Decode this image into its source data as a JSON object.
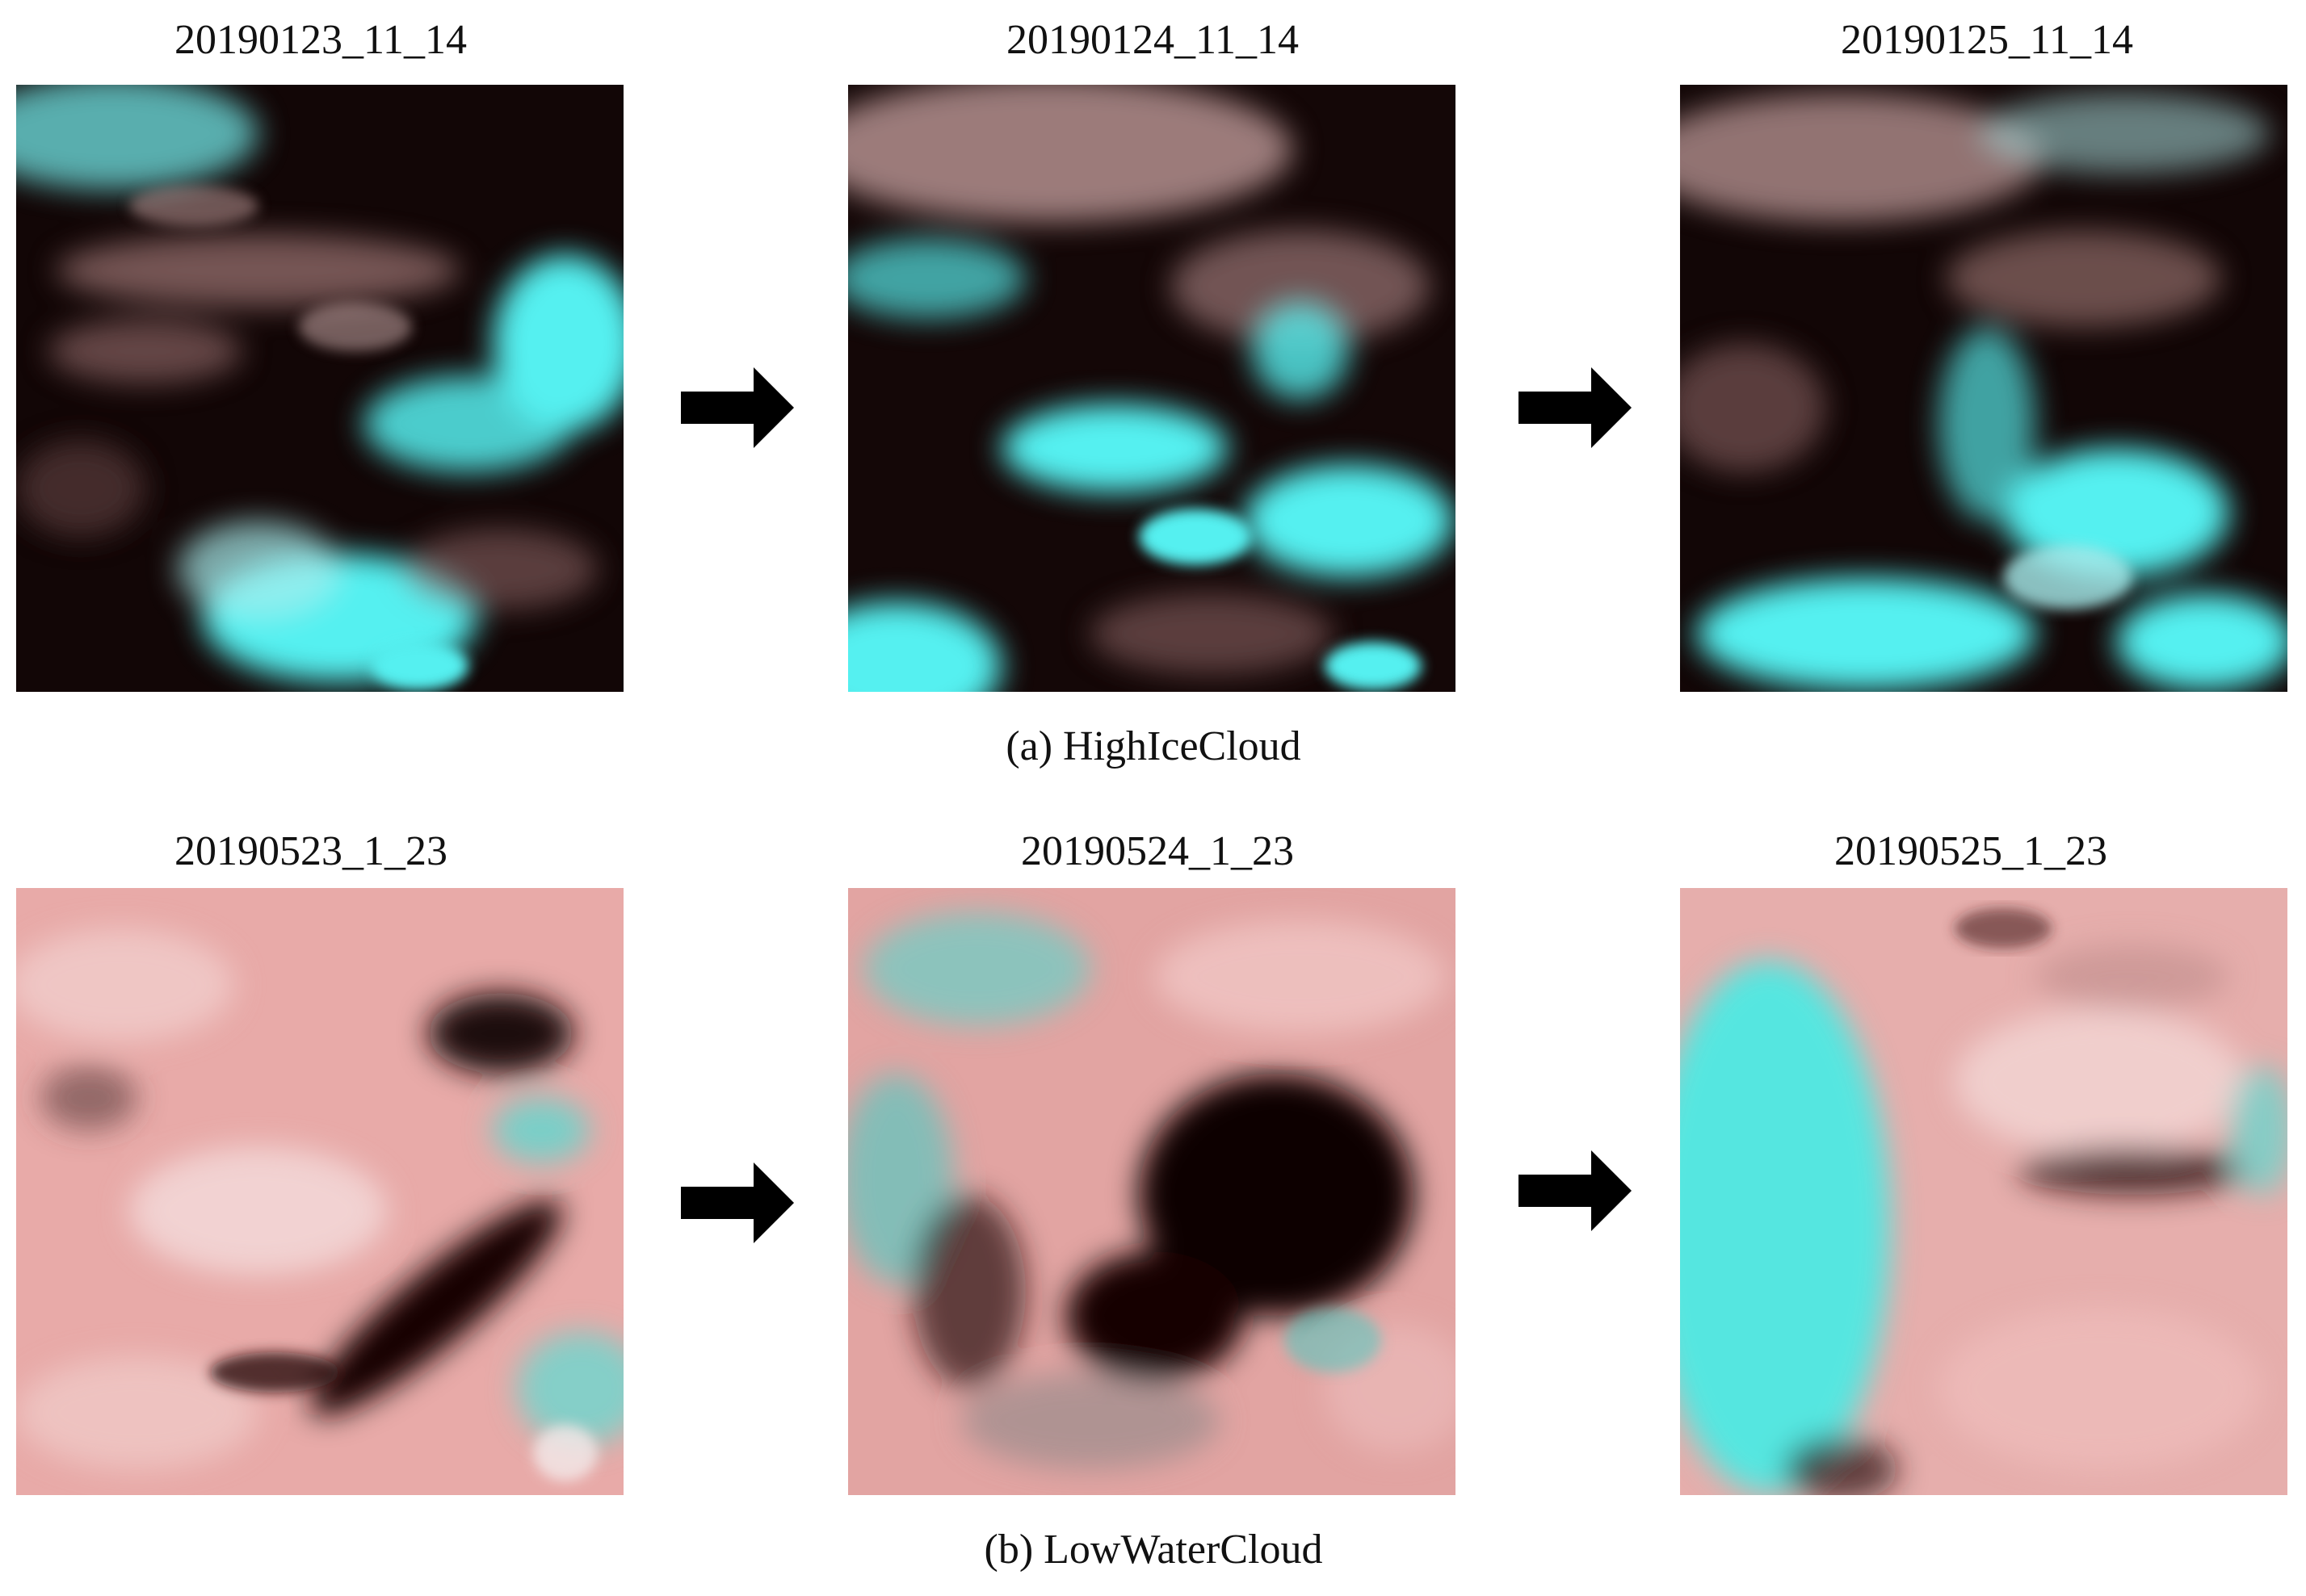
{
  "rows": [
    {
      "panels": [
        {
          "label": "20190123_11_14"
        },
        {
          "label": "20190124_11_14"
        },
        {
          "label": "20190125_11_14"
        }
      ],
      "caption": "(a) HighIceCloud"
    },
    {
      "panels": [
        {
          "label": "20190523_1_23"
        },
        {
          "label": "20190524_1_23"
        },
        {
          "label": "20190525_1_23"
        }
      ],
      "caption": "(b) LowWaterCloud"
    }
  ],
  "colors": {
    "ice_cloud": "#55f0f0",
    "water_cloud": "#e8aaa8",
    "clear_sky": "#120606",
    "arrow": "#000000"
  },
  "icons": {
    "arrow": "right-arrow-icon"
  }
}
